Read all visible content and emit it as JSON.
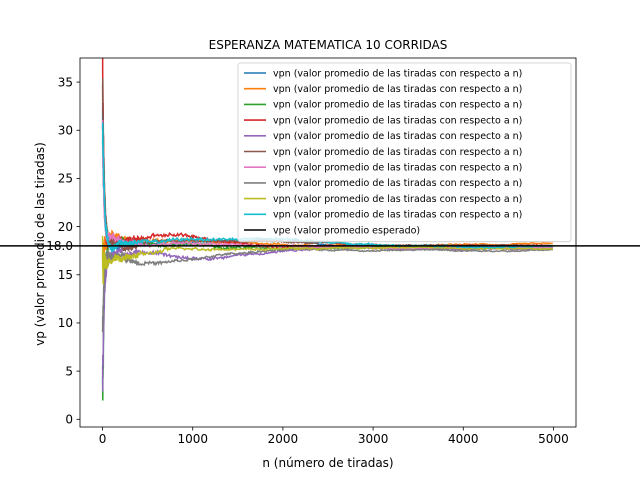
{
  "chart_data": {
    "type": "line",
    "title": "ESPERANZA MATEMATICA 10 CORRIDAS",
    "xlabel": "n (número de tiradas)",
    "ylabel": "vp (valor promedio de las tiradas)",
    "xlim": [
      -250,
      5250
    ],
    "ylim": [
      -0.8,
      37.5
    ],
    "xticks": [
      0,
      1000,
      2000,
      3000,
      4000,
      5000
    ],
    "yticks": [
      0,
      5,
      10,
      15,
      20,
      25,
      30,
      35
    ],
    "hline_label": "18.0",
    "grid": false,
    "legend_position": "upper-right",
    "n_max": 5000,
    "series": [
      {
        "name": "vpn (valor promedio de las tiradas con respecto a n)",
        "color": "#1f77b4",
        "start": 31.0,
        "final": 17.8,
        "peak_n": 1400,
        "peak_dev": 0.6,
        "noise": 1.6
      },
      {
        "name": "vpn (valor promedio de las tiradas con respecto a n)",
        "color": "#ff7f0e",
        "start": 17.0,
        "final": 18.1,
        "peak_n": 900,
        "peak_dev": 0.4,
        "noise": 1.8
      },
      {
        "name": "vpn (valor promedio de las tiradas con respecto a n)",
        "color": "#2ca02c",
        "start": 1.0,
        "final": 17.9,
        "peak_n": 600,
        "peak_dev": 0.3,
        "noise": 2.2
      },
      {
        "name": "vpn (valor promedio de las tiradas con respecto a n)",
        "color": "#d62728",
        "start": 36.0,
        "final": 18.0,
        "peak_n": 700,
        "peak_dev": 1.0,
        "noise": 2.4
      },
      {
        "name": "vpn (valor promedio de las tiradas con respecto a n)",
        "color": "#9467bd",
        "start": 3.5,
        "final": 17.7,
        "peak_n": 900,
        "peak_dev": -0.8,
        "noise": 2.0
      },
      {
        "name": "vpn (valor promedio de las tiradas con respecto a n)",
        "color": "#8c564b",
        "start": 35.0,
        "final": 18.0,
        "peak_n": 1200,
        "peak_dev": 0.7,
        "noise": 1.9
      },
      {
        "name": "vpn (valor promedio de las tiradas con respecto a n)",
        "color": "#e377c2",
        "start": 28.0,
        "final": 17.9,
        "peak_n": 800,
        "peak_dev": 0.5,
        "noise": 1.7
      },
      {
        "name": "vpn (valor promedio de las tiradas con respecto a n)",
        "color": "#7f7f7f",
        "start": 11.0,
        "final": 17.6,
        "peak_n": 700,
        "peak_dev": -1.2,
        "noise": 1.8
      },
      {
        "name": "vpn (valor promedio de las tiradas con respecto a n)",
        "color": "#bcbd22",
        "start": 16.0,
        "final": 17.8,
        "peak_n": 300,
        "peak_dev": -0.9,
        "noise": 1.9
      },
      {
        "name": "vpn (valor promedio de las tiradas con respecto a n)",
        "color": "#17becf",
        "start": 31.5,
        "final": 17.9,
        "peak_n": 1500,
        "peak_dev": 0.8,
        "noise": 2.0
      }
    ],
    "expected": {
      "name": "vpe (valor promedio esperado)",
      "value": 18.0,
      "color": "#000000"
    }
  }
}
